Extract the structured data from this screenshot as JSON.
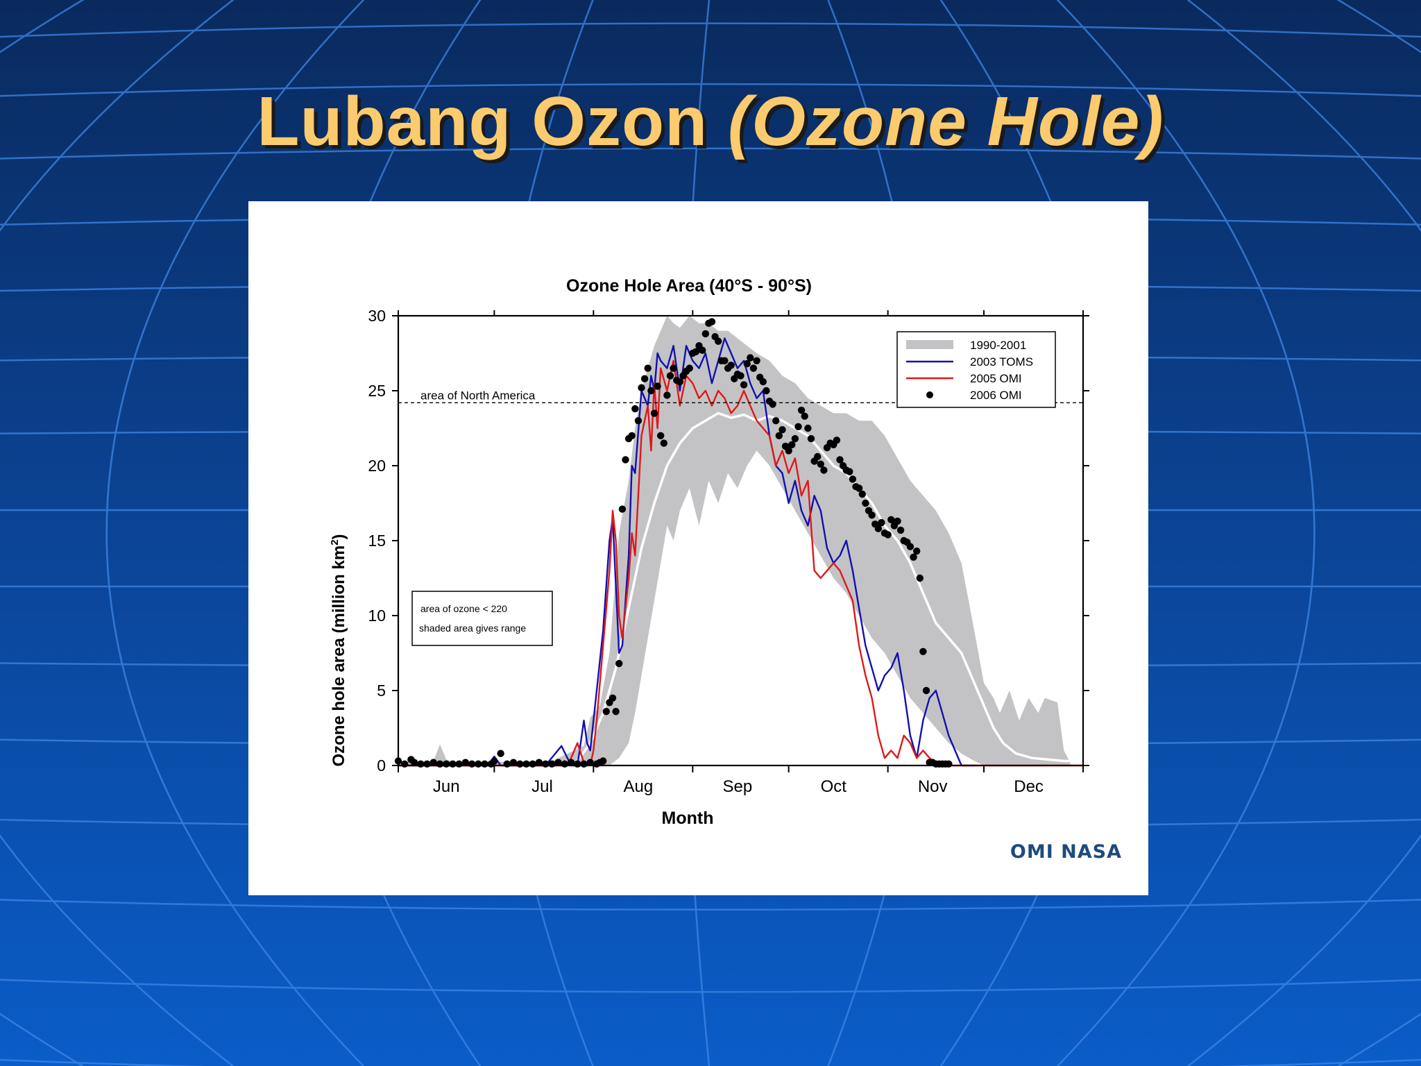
{
  "slide": {
    "title_main": "Lubang Ozon ",
    "title_italic": "(Ozone Hole)",
    "credit": "OMI NASA"
  },
  "colors": {
    "background_top": "#0a2a5e",
    "background_bottom": "#0a5cc8",
    "grid_lines": "#3f86e6",
    "title": "#FCCB6E",
    "credit": "#1f4a80",
    "range_fill": "#c3c3c5",
    "series_2003": "#1010b0",
    "series_2005": "#e01818",
    "series_2006": "#000000",
    "mean_line": "#ffffff"
  },
  "chart_data": {
    "type": "line",
    "title": "Ozone Hole Area (40°S - 90°S)",
    "xlabel": "Month",
    "ylabel": "Ozone hole area (million km",
    "ylabel_sup": "2",
    "ylabel_end": ")",
    "ylim": [
      0,
      30
    ],
    "yticks": [
      0,
      5,
      10,
      15,
      20,
      25,
      30
    ],
    "x_unit": "day of year",
    "xlim": [
      152,
      366
    ],
    "month_labels": [
      "Jun",
      "Jul",
      "Aug",
      "Sep",
      "Oct",
      "Nov",
      "Dec"
    ],
    "month_label_days": [
      167,
      197,
      227,
      258,
      288,
      319,
      349
    ],
    "month_tick_days": [
      152,
      182,
      213,
      244,
      274,
      305,
      335,
      366
    ],
    "grid": false,
    "legend_position": "top-right",
    "legend": [
      {
        "label": "1990-2001",
        "kind": "band"
      },
      {
        "label": "2003  TOMS",
        "kind": "line",
        "color": "#1010b0"
      },
      {
        "label": "2005  OMI",
        "kind": "line",
        "color": "#e01818"
      },
      {
        "label": "2006  OMI",
        "kind": "dots",
        "color": "#000000"
      }
    ],
    "reference_line": {
      "label": "area of North America",
      "y": 24.2
    },
    "note_lines": [
      "area of ozone < 220",
      "shaded area gives range"
    ],
    "band_1990_2001": {
      "name": "1990-2001",
      "x": [
        152,
        163,
        165,
        167,
        170,
        200,
        205,
        210,
        212,
        215,
        218,
        221,
        224,
        226,
        228,
        230,
        232,
        234,
        236,
        238,
        240,
        243,
        246,
        249,
        252,
        255,
        258,
        261,
        264,
        268,
        272,
        276,
        280,
        284,
        288,
        292,
        296,
        300,
        304,
        308,
        312,
        316,
        320,
        324,
        328,
        332,
        335,
        338,
        340,
        343,
        346,
        349,
        352,
        354,
        358,
        360,
        362
      ],
      "high": [
        0.2,
        0.3,
        1.4,
        0.4,
        0.2,
        0.3,
        0.8,
        1.3,
        3.2,
        4.0,
        7.5,
        15.5,
        19.0,
        22.5,
        25.0,
        26.5,
        28.0,
        29.0,
        30.0,
        29.5,
        29.2,
        30.0,
        29.5,
        29.5,
        29.0,
        29.0,
        28.5,
        28.0,
        27.5,
        27.0,
        26.0,
        25.5,
        24.5,
        24.0,
        23.5,
        23.5,
        23.0,
        23.0,
        22.0,
        20.5,
        19.0,
        18.0,
        17.0,
        15.5,
        13.5,
        9.0,
        5.5,
        4.5,
        3.5,
        5.0,
        3.0,
        4.5,
        3.5,
        4.5,
        4.2,
        1.0,
        0.2
      ],
      "low": [
        0.0,
        0.0,
        0.0,
        0.0,
        0.0,
        0.0,
        0.0,
        0.0,
        0.0,
        0.0,
        0.0,
        0.5,
        1.5,
        3.5,
        6.0,
        8.5,
        11.0,
        13.5,
        16.0,
        15.0,
        17.0,
        18.5,
        16.0,
        19.0,
        17.5,
        19.5,
        18.5,
        20.0,
        21.0,
        20.0,
        18.5,
        17.0,
        15.5,
        14.0,
        12.5,
        11.5,
        10.0,
        8.5,
        7.5,
        6.0,
        4.5,
        3.5,
        2.5,
        1.5,
        0.8,
        0.3,
        0.0,
        0.0,
        0.0,
        0.0,
        0.0,
        0.0,
        0.0,
        0.0,
        0.0,
        0.0,
        0.0
      ]
    },
    "mean_line": {
      "x": [
        208,
        212,
        216,
        220,
        224,
        228,
        232,
        236,
        240,
        244,
        248,
        252,
        256,
        260,
        264,
        268,
        272,
        276,
        280,
        284,
        288,
        292,
        296,
        300,
        304,
        308,
        312,
        316,
        320,
        324,
        328,
        332,
        335,
        338,
        341,
        345,
        350,
        355,
        360,
        362
      ],
      "y": [
        0.3,
        1.5,
        3.5,
        6.5,
        10.5,
        14.5,
        17.5,
        20.0,
        21.5,
        22.5,
        23.0,
        23.5,
        23.2,
        23.4,
        23.0,
        23.3,
        23.0,
        22.5,
        22.0,
        21.0,
        20.0,
        19.5,
        18.5,
        17.5,
        16.0,
        15.0,
        13.5,
        11.5,
        9.5,
        8.5,
        7.5,
        5.5,
        4.0,
        2.5,
        1.5,
        0.8,
        0.5,
        0.4,
        0.3,
        0.3
      ]
    },
    "series": [
      {
        "name": "2003  TOMS",
        "color": "#1010b0",
        "x": [
          152,
          180,
          182,
          184,
          198,
          203,
          206,
          208,
          210,
          211,
          212,
          214,
          216,
          218,
          219,
          220,
          221,
          222,
          223,
          224,
          225,
          226,
          228,
          230,
          231,
          232,
          233,
          234,
          236,
          238,
          240,
          242,
          244,
          246,
          248,
          250,
          252,
          254,
          256,
          258,
          260,
          262,
          264,
          266,
          268,
          270,
          272,
          274,
          276,
          278,
          280,
          282,
          284,
          286,
          288,
          290,
          292,
          294,
          296,
          298,
          300,
          302,
          304,
          306,
          308,
          310,
          312,
          314,
          316,
          318,
          320,
          322,
          324,
          326,
          328,
          330,
          332
        ],
        "y": [
          0,
          0,
          0.6,
          0,
          0,
          1.3,
          0,
          0,
          3.0,
          1.5,
          1.0,
          5.0,
          9.0,
          15.0,
          16.5,
          12.0,
          7.5,
          8.0,
          11.0,
          14.0,
          20.0,
          19.5,
          25.0,
          24.0,
          26.0,
          25.0,
          27.5,
          27.0,
          26.5,
          28.0,
          25.0,
          28.0,
          27.0,
          26.5,
          27.5,
          25.5,
          27.0,
          28.5,
          27.5,
          26.5,
          27.0,
          25.5,
          24.5,
          25.0,
          22.0,
          20.0,
          19.5,
          17.5,
          19.0,
          17.0,
          16.0,
          18.0,
          17.0,
          14.5,
          13.5,
          14.0,
          15.0,
          13.0,
          10.5,
          8.0,
          6.5,
          5.0,
          6.0,
          6.5,
          7.5,
          5.0,
          2.0,
          0.5,
          3.0,
          4.5,
          5.0,
          3.5,
          2.0,
          1.0,
          0.0,
          0.0,
          0.0
        ]
      },
      {
        "name": "2005  OMI",
        "color": "#e01818",
        "x": [
          152,
          205,
          208,
          210,
          212,
          213,
          214,
          216,
          218,
          219,
          220,
          221,
          222,
          224,
          225,
          226,
          228,
          230,
          231,
          232,
          233,
          234,
          236,
          238,
          240,
          242,
          244,
          246,
          248,
          250,
          252,
          254,
          256,
          258,
          260,
          262,
          264,
          266,
          268,
          270,
          272,
          274,
          276,
          278,
          280,
          282,
          284,
          286,
          288,
          290,
          292,
          294,
          296,
          298,
          300,
          302,
          304,
          306,
          308,
          310,
          312,
          314,
          316,
          318,
          320,
          322,
          324,
          326,
          328,
          330,
          332,
          335,
          366
        ],
        "y": [
          0,
          0,
          1.5,
          0.2,
          0.0,
          1.0,
          3.0,
          8.0,
          13.0,
          17.0,
          15.0,
          10.0,
          8.5,
          12.5,
          15.5,
          14.0,
          22.0,
          24.0,
          21.0,
          25.5,
          22.5,
          26.5,
          25.0,
          27.0,
          24.0,
          26.0,
          25.5,
          24.5,
          25.0,
          24.0,
          25.0,
          24.5,
          23.5,
          24.0,
          25.0,
          24.0,
          23.0,
          22.5,
          22.0,
          20.0,
          21.0,
          19.5,
          20.5,
          18.0,
          19.0,
          13.0,
          12.5,
          13.0,
          13.5,
          13.0,
          12.0,
          11.0,
          8.0,
          6.0,
          4.5,
          2.0,
          0.5,
          1.0,
          0.5,
          2.0,
          1.5,
          0.5,
          1.0,
          0.5,
          0.2,
          0.0,
          0.0,
          0.0,
          0.0,
          0.0,
          0.0,
          0.0,
          0.0
        ]
      }
    ],
    "dots_2006": {
      "name": "2006  OMI",
      "color": "#000000",
      "x": [
        152,
        154,
        156,
        157,
        159,
        161,
        163,
        165,
        167,
        169,
        171,
        173,
        175,
        177,
        179,
        181,
        182,
        184,
        186,
        188,
        190,
        192,
        194,
        196,
        198,
        200,
        202,
        204,
        206,
        208,
        210,
        212,
        214,
        215,
        216,
        217,
        218,
        219,
        220,
        221,
        222,
        223,
        224,
        225,
        226,
        227,
        228,
        229,
        230,
        231,
        232,
        233,
        234,
        235,
        236,
        237,
        238,
        239,
        240,
        241,
        242,
        243,
        244,
        245,
        246,
        247,
        248,
        249,
        250,
        251,
        252,
        253,
        254,
        255,
        256,
        257,
        258,
        259,
        260,
        261,
        262,
        263,
        264,
        265,
        266,
        267,
        268,
        269,
        270,
        271,
        272,
        273,
        274,
        275,
        276,
        277,
        278,
        279,
        280,
        281,
        282,
        283,
        284,
        285,
        286,
        287,
        288,
        289,
        290,
        291,
        292,
        293,
        294,
        295,
        296,
        297,
        298,
        299,
        300,
        301,
        302,
        303,
        304,
        305,
        306,
        307,
        308,
        309,
        310,
        311,
        312,
        313,
        314,
        315,
        316,
        317,
        318,
        319,
        320,
        321,
        322,
        323,
        324
      ],
      "y": [
        0.3,
        0.1,
        0.4,
        0.2,
        0.1,
        0.1,
        0.2,
        0.1,
        0.1,
        0.1,
        0.1,
        0.2,
        0.1,
        0.1,
        0.1,
        0.1,
        0.3,
        0.8,
        0.1,
        0.2,
        0.1,
        0.1,
        0.1,
        0.2,
        0.1,
        0.1,
        0.2,
        0.1,
        0.2,
        0.1,
        0.1,
        0.2,
        0.1,
        0.2,
        0.3,
        3.6,
        4.2,
        4.5,
        3.6,
        6.8,
        17.1,
        20.4,
        21.8,
        22.0,
        23.8,
        23.0,
        25.2,
        25.8,
        26.5,
        25.0,
        23.5,
        25.3,
        22.0,
        21.5,
        24.7,
        26.0,
        26.5,
        25.7,
        25.6,
        26.0,
        26.3,
        26.5,
        27.5,
        27.6,
        28.0,
        27.7,
        28.8,
        29.5,
        29.6,
        28.6,
        28.3,
        27.0,
        27.0,
        26.5,
        26.7,
        25.8,
        26.1,
        26.0,
        25.4,
        26.8,
        27.2,
        26.5,
        27.0,
        25.9,
        25.6,
        25.0,
        24.3,
        24.1,
        23.0,
        22.0,
        22.4,
        21.3,
        21.0,
        21.4,
        21.8,
        22.6,
        23.7,
        23.3,
        22.5,
        21.8,
        20.3,
        20.6,
        20.1,
        19.7,
        21.2,
        21.5,
        21.4,
        21.7,
        20.4,
        20.0,
        19.7,
        19.6,
        19.1,
        18.6,
        18.5,
        18.1,
        17.5,
        17.0,
        16.7,
        16.1,
        15.8,
        16.2,
        15.5,
        15.4,
        16.4,
        16.0,
        16.3,
        15.7,
        15.0,
        14.9,
        14.6,
        13.9,
        14.3,
        12.5,
        7.6,
        5.0,
        0.2,
        0.2,
        0.1,
        0.1,
        0.1,
        0.1,
        0.1
      ]
    }
  }
}
